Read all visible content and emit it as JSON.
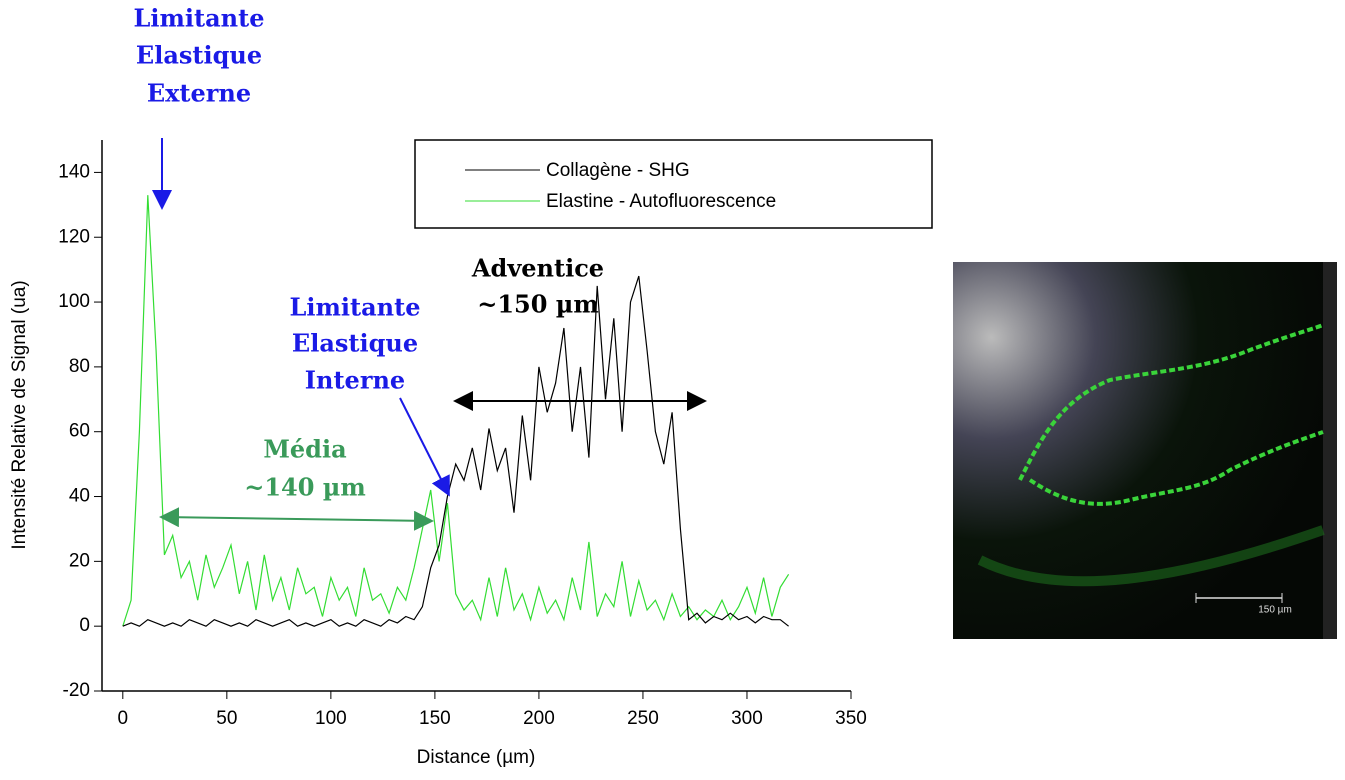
{
  "chart_data": {
    "type": "line",
    "xlabel": "Distance (µm)",
    "ylabel": "Intensité Relative de Signal (ua)",
    "x": [
      0,
      4,
      8,
      12,
      16,
      20,
      24,
      28,
      32,
      36,
      40,
      44,
      48,
      52,
      56,
      60,
      64,
      68,
      72,
      76,
      80,
      84,
      88,
      92,
      96,
      100,
      104,
      108,
      112,
      116,
      120,
      124,
      128,
      132,
      136,
      140,
      144,
      148,
      152,
      156,
      160,
      164,
      168,
      172,
      176,
      180,
      184,
      188,
      192,
      196,
      200,
      204,
      208,
      212,
      216,
      220,
      224,
      228,
      232,
      236,
      240,
      244,
      248,
      252,
      256,
      260,
      264,
      268,
      272,
      276,
      280,
      284,
      288,
      292,
      296,
      300,
      304,
      308,
      312,
      316,
      320
    ],
    "series": [
      {
        "name": "Collagène - SHG",
        "color": "#000000",
        "values": [
          0,
          1,
          0,
          2,
          1,
          0,
          1,
          0,
          2,
          1,
          0,
          2,
          1,
          0,
          1,
          0,
          2,
          1,
          0,
          1,
          2,
          0,
          1,
          0,
          1,
          2,
          0,
          1,
          0,
          2,
          1,
          0,
          2,
          1,
          3,
          2,
          6,
          18,
          25,
          40,
          50,
          45,
          55,
          42,
          61,
          48,
          55,
          35,
          65,
          45,
          80,
          66,
          75,
          92,
          60,
          80,
          52,
          105,
          70,
          95,
          60,
          100,
          108,
          85,
          60,
          50,
          66,
          30,
          2,
          4,
          1,
          3,
          2,
          4,
          2,
          3,
          1,
          3,
          2,
          2,
          0
        ]
      },
      {
        "name": "Elastine - Autofluorescence",
        "color": "#33dd33",
        "values": [
          0,
          8,
          60,
          133,
          85,
          22,
          28,
          15,
          20,
          8,
          22,
          12,
          18,
          25,
          10,
          20,
          5,
          22,
          8,
          15,
          5,
          18,
          10,
          12,
          3,
          15,
          8,
          12,
          3,
          18,
          8,
          10,
          4,
          12,
          8,
          18,
          30,
          42,
          20,
          38,
          10,
          5,
          8,
          2,
          15,
          3,
          18,
          5,
          10,
          2,
          12,
          4,
          8,
          2,
          15,
          5,
          26,
          3,
          10,
          6,
          20,
          3,
          14,
          5,
          8,
          2,
          10,
          3,
          6,
          2,
          5,
          3,
          8,
          2,
          6,
          12,
          4,
          15,
          3,
          12,
          16
        ]
      }
    ],
    "xlim": [
      -10,
      350
    ],
    "xticks": [
      0,
      50,
      100,
      150,
      200,
      250,
      300,
      350
    ],
    "ylim": [
      -20,
      150
    ],
    "yticks": [
      -20,
      0,
      20,
      40,
      60,
      80,
      100,
      120,
      140
    ],
    "grid": false,
    "annotations": {
      "lee": [
        "Limitante",
        "Elastique",
        "Externe"
      ],
      "lei": [
        "Limitante",
        "Elastique",
        "Interne"
      ],
      "adventice": [
        "Adventice",
        "~150 µm"
      ],
      "media": [
        "Média",
        "~140 µm"
      ]
    },
    "image_scale_label": "150 µm"
  }
}
